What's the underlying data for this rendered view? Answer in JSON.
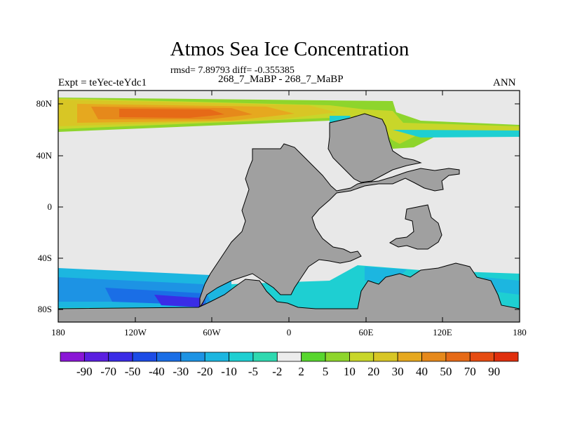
{
  "header": {
    "title": "Atmos Sea Ice Concentration",
    "stats": "rmsd= 7.89793 diff= -0.355385",
    "comparison": "268_7_MaBP - 268_7_MaBP",
    "experiment": "Expt = teYec-teYdc1",
    "season": "ANN"
  },
  "map": {
    "lat_labels": [
      "80N",
      "40N",
      "0",
      "40S",
      "80S"
    ],
    "lon_labels": [
      "180",
      "120W",
      "60W",
      "0",
      "60E",
      "120E",
      "180"
    ],
    "lat_range": [
      -90,
      90
    ],
    "lon_range": [
      -180,
      180
    ]
  },
  "colorbar": {
    "levels": [
      "-90",
      "-70",
      "-50",
      "-40",
      "-30",
      "-20",
      "-10",
      "-5",
      "-2",
      "2",
      "5",
      "10",
      "20",
      "30",
      "40",
      "50",
      "70",
      "90"
    ],
    "colors": [
      "#8a16d6",
      "#5b1fe0",
      "#3a2ce6",
      "#1c4ce6",
      "#1a6ee6",
      "#1d93e4",
      "#1cb6e0",
      "#1ecfd2",
      "#2fd9b0",
      "#ececec",
      "#58d62e",
      "#8ed52c",
      "#c8d62a",
      "#d8c625",
      "#e6a81f",
      "#e6891b",
      "#e66a17",
      "#e64c12",
      "#e02f0d"
    ],
    "land_color": "#a0a0a0",
    "ocean_color": "#e8e8e8"
  }
}
